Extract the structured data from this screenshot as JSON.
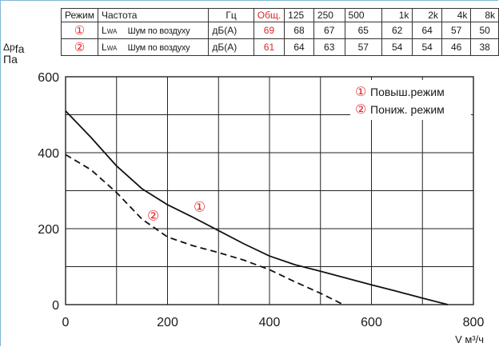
{
  "table": {
    "header": [
      "Режим",
      "Частота",
      "Гц",
      "Общ.",
      "125",
      "250",
      "500",
      "1k",
      "2k",
      "4k",
      "8k"
    ],
    "rows": [
      {
        "mode": "①",
        "quantity": "L",
        "quantity_sub": "WA",
        "desc": "Шум по воздуху",
        "unit": "дБ(А)",
        "total": "69",
        "bands": [
          "68",
          "67",
          "65",
          "62",
          "64",
          "57",
          "50"
        ]
      },
      {
        "mode": "②",
        "quantity": "L",
        "quantity_sub": "WA",
        "desc": "Шум по воздуху",
        "unit": "дБ(А)",
        "total": "61",
        "bands": [
          "64",
          "63",
          "57",
          "54",
          "54",
          "46",
          "38"
        ]
      }
    ]
  },
  "y_axis": {
    "symbol": "Δp",
    "symbol_sub": "fa",
    "unit": "Па"
  },
  "chart_data": {
    "type": "line",
    "xlabel": "V м³/ч",
    "ylabel": "Δpfa Па",
    "xlim": [
      0,
      800
    ],
    "ylim": [
      0,
      600
    ],
    "x_ticks": [
      0,
      200,
      400,
      600,
      800
    ],
    "y_ticks": [
      0,
      200,
      400,
      600
    ],
    "grid": true,
    "legend_position": "top-right",
    "series": [
      {
        "name": "Повыш.режим",
        "marker": "①",
        "style": "solid",
        "points": [
          [
            0,
            510
          ],
          [
            50,
            440
          ],
          [
            100,
            365
          ],
          [
            150,
            305
          ],
          [
            200,
            263
          ],
          [
            250,
            230
          ],
          [
            300,
            195
          ],
          [
            350,
            160
          ],
          [
            400,
            128
          ],
          [
            450,
            105
          ],
          [
            500,
            88
          ],
          [
            550,
            70
          ],
          [
            600,
            52
          ],
          [
            650,
            35
          ],
          [
            700,
            17
          ],
          [
            750,
            0
          ]
        ]
      },
      {
        "name": "Пониж. режим",
        "marker": "②",
        "style": "dashed",
        "points": [
          [
            0,
            395
          ],
          [
            50,
            355
          ],
          [
            100,
            295
          ],
          [
            150,
            225
          ],
          [
            200,
            178
          ],
          [
            250,
            155
          ],
          [
            300,
            137
          ],
          [
            350,
            117
          ],
          [
            400,
            92
          ],
          [
            450,
            60
          ],
          [
            500,
            30
          ],
          [
            545,
            0
          ]
        ]
      }
    ]
  },
  "colors": {
    "marker": "#e0262a",
    "line": "#111111",
    "grid": "#222222",
    "frame": "#7fb6d6"
  }
}
